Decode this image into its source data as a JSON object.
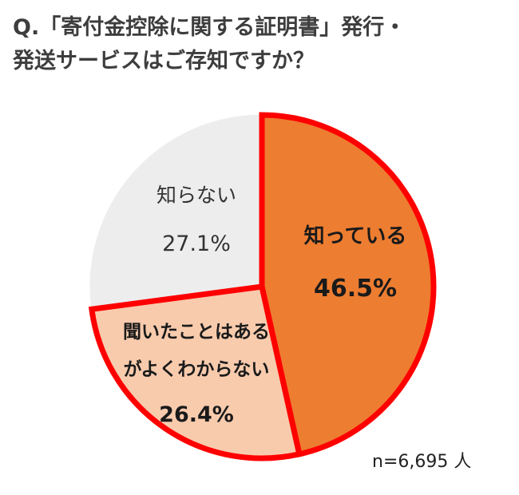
{
  "title": {
    "line1": "Q.「寄付金控除に関する証明書」発行・",
    "line2": "発送サービスはご存知ですか？"
  },
  "sample_size": "n=6,695 人",
  "chart_data": {
    "type": "pie",
    "title": "Q.「寄付金控除に関する証明書」発行・発送サービスはご存知ですか？",
    "start": "12 o'clock",
    "direction": "clockwise",
    "slices": [
      {
        "label": "知っている",
        "value": 46.5,
        "value_label": "46.5%",
        "color": "#ed7d31",
        "highlighted": true
      },
      {
        "label": "聞いたことはあるがよくわからない",
        "value": 26.4,
        "value_label": "26.4%",
        "color": "#f8cbad",
        "highlighted": true
      },
      {
        "label": "知らない",
        "value": 27.1,
        "value_label": "27.1%",
        "color": "#ededed",
        "highlighted": false
      }
    ],
    "slice_text_lines": [
      {
        "lines": [
          "知っている"
        ],
        "value": "46.5%"
      },
      {
        "lines": [
          "聞いたことはある",
          "がよくわからない"
        ],
        "value": "26.4%"
      },
      {
        "lines": [
          "知らない"
        ],
        "value": "27.1%"
      }
    ],
    "highlight_border_color": "#ff0000",
    "separator_color": "#ffffff"
  }
}
